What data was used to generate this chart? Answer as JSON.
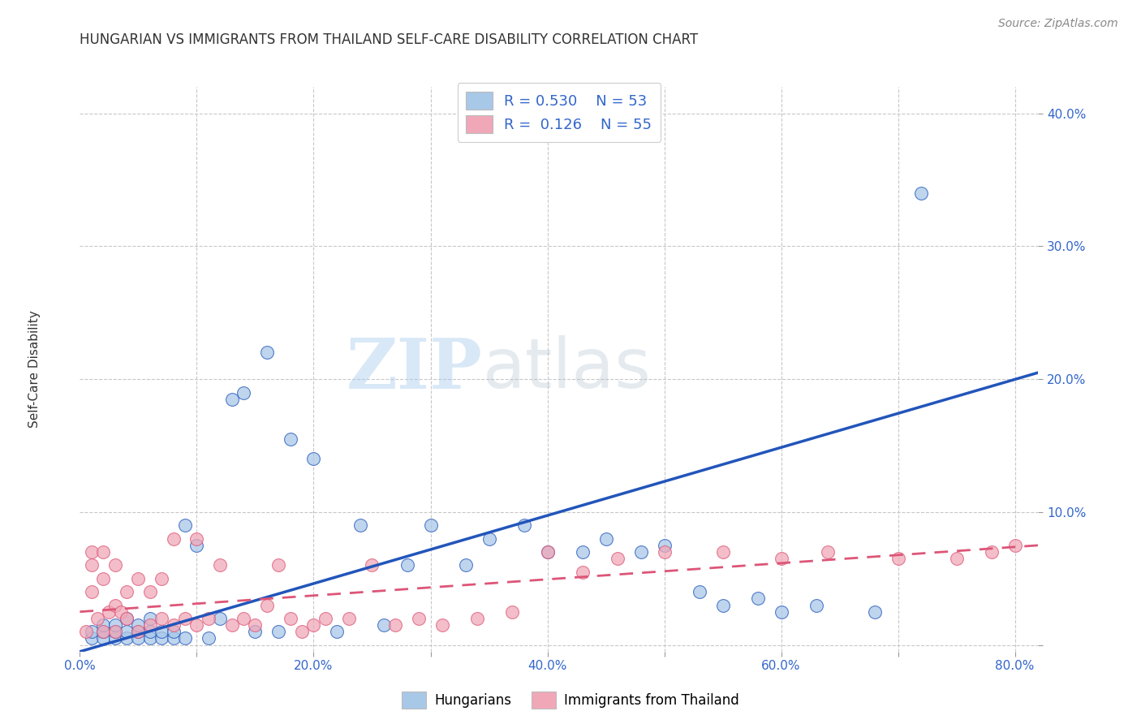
{
  "title": "HUNGARIAN VS IMMIGRANTS FROM THAILAND SELF-CARE DISABILITY CORRELATION CHART",
  "source": "Source: ZipAtlas.com",
  "ylabel": "Self-Care Disability",
  "xlim": [
    0.0,
    0.82
  ],
  "ylim": [
    -0.005,
    0.42
  ],
  "xticks": [
    0.0,
    0.1,
    0.2,
    0.3,
    0.4,
    0.5,
    0.6,
    0.7,
    0.8
  ],
  "xticklabels": [
    "0.0%",
    "",
    "20.0%",
    "",
    "40.0%",
    "",
    "60.0%",
    "",
    "80.0%"
  ],
  "yticks": [
    0.0,
    0.1,
    0.2,
    0.3,
    0.4
  ],
  "yticklabels": [
    "",
    "10.0%",
    "20.0%",
    "30.0%",
    "40.0%"
  ],
  "background_color": "#ffffff",
  "grid_color": "#c8c8c8",
  "hungarian_color": "#a8c8e8",
  "thailand_color": "#f0a8b8",
  "hungarian_line_color": "#2255bb",
  "thailand_line_color": "#dd5577",
  "legend_R_hun": "0.530",
  "legend_N_hun": "53",
  "legend_R_thai": "0.126",
  "legend_N_thai": "55",
  "legend_label_hun": "Hungarians",
  "legend_label_thai": "Immigrants from Thailand",
  "watermark_zip": "ZIP",
  "watermark_atlas": "atlas",
  "hun_line_x0": 0.0,
  "hun_line_y0": -0.005,
  "hun_line_x1": 0.82,
  "hun_line_y1": 0.205,
  "thai_line_x0": 0.0,
  "thai_line_y0": 0.025,
  "thai_line_x1": 0.82,
  "thai_line_y1": 0.075,
  "hungarian_x": [
    0.01,
    0.01,
    0.02,
    0.02,
    0.02,
    0.03,
    0.03,
    0.03,
    0.04,
    0.04,
    0.04,
    0.05,
    0.05,
    0.05,
    0.06,
    0.06,
    0.06,
    0.07,
    0.07,
    0.08,
    0.08,
    0.09,
    0.09,
    0.1,
    0.11,
    0.12,
    0.13,
    0.14,
    0.15,
    0.16,
    0.17,
    0.18,
    0.2,
    0.22,
    0.24,
    0.26,
    0.28,
    0.3,
    0.33,
    0.35,
    0.38,
    0.4,
    0.43,
    0.45,
    0.48,
    0.5,
    0.53,
    0.55,
    0.58,
    0.6,
    0.63,
    0.68,
    0.72
  ],
  "hungarian_y": [
    0.005,
    0.01,
    0.005,
    0.01,
    0.015,
    0.005,
    0.01,
    0.015,
    0.005,
    0.01,
    0.02,
    0.005,
    0.01,
    0.015,
    0.005,
    0.01,
    0.02,
    0.005,
    0.01,
    0.005,
    0.01,
    0.005,
    0.09,
    0.075,
    0.005,
    0.02,
    0.185,
    0.19,
    0.01,
    0.22,
    0.01,
    0.155,
    0.14,
    0.01,
    0.09,
    0.015,
    0.06,
    0.09,
    0.06,
    0.08,
    0.09,
    0.07,
    0.07,
    0.08,
    0.07,
    0.075,
    0.04,
    0.03,
    0.035,
    0.025,
    0.03,
    0.025,
    0.34
  ],
  "thailand_x": [
    0.005,
    0.01,
    0.01,
    0.01,
    0.015,
    0.02,
    0.02,
    0.02,
    0.025,
    0.03,
    0.03,
    0.03,
    0.035,
    0.04,
    0.04,
    0.05,
    0.05,
    0.06,
    0.06,
    0.07,
    0.07,
    0.08,
    0.08,
    0.09,
    0.1,
    0.1,
    0.11,
    0.12,
    0.13,
    0.14,
    0.15,
    0.16,
    0.17,
    0.18,
    0.19,
    0.2,
    0.21,
    0.23,
    0.25,
    0.27,
    0.29,
    0.31,
    0.34,
    0.37,
    0.4,
    0.43,
    0.46,
    0.5,
    0.55,
    0.6,
    0.64,
    0.7,
    0.75,
    0.78,
    0.8
  ],
  "thailand_y": [
    0.01,
    0.04,
    0.06,
    0.07,
    0.02,
    0.01,
    0.05,
    0.07,
    0.025,
    0.01,
    0.03,
    0.06,
    0.025,
    0.02,
    0.04,
    0.01,
    0.05,
    0.015,
    0.04,
    0.02,
    0.05,
    0.015,
    0.08,
    0.02,
    0.015,
    0.08,
    0.02,
    0.06,
    0.015,
    0.02,
    0.015,
    0.03,
    0.06,
    0.02,
    0.01,
    0.015,
    0.02,
    0.02,
    0.06,
    0.015,
    0.02,
    0.015,
    0.02,
    0.025,
    0.07,
    0.055,
    0.065,
    0.07,
    0.07,
    0.065,
    0.07,
    0.065,
    0.065,
    0.07,
    0.075
  ]
}
